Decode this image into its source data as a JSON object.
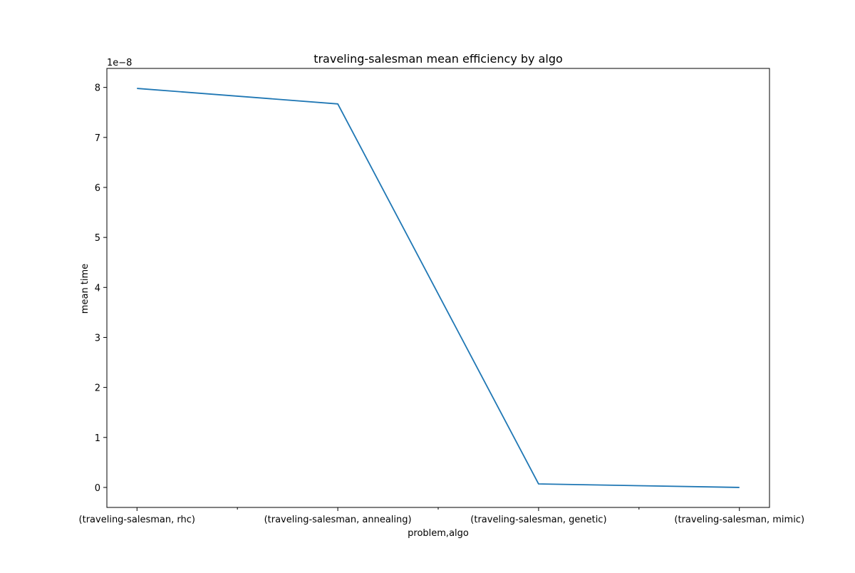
{
  "chart_data": {
    "type": "line",
    "title": "traveling-salesman mean efficiency by algo",
    "xlabel": "problem,algo",
    "ylabel": "mean time",
    "y_offset_label": "1e−8",
    "y_scale_factor": 1e-08,
    "categories": [
      "(traveling-salesman, rhc)",
      "(traveling-salesman, annealing)",
      "(traveling-salesman, genetic)",
      "(traveling-salesman, mimic)"
    ],
    "series": [
      {
        "values": [
          7.98e-08,
          7.67e-08,
          7e-10,
          0.0
        ],
        "color": "#1f77b4"
      }
    ],
    "y_ticks": [
      0,
      1,
      2,
      3,
      4,
      5,
      6,
      7,
      8
    ],
    "ylim": [
      -4e-09,
      8.38e-08
    ],
    "grid": false,
    "legend": false
  }
}
